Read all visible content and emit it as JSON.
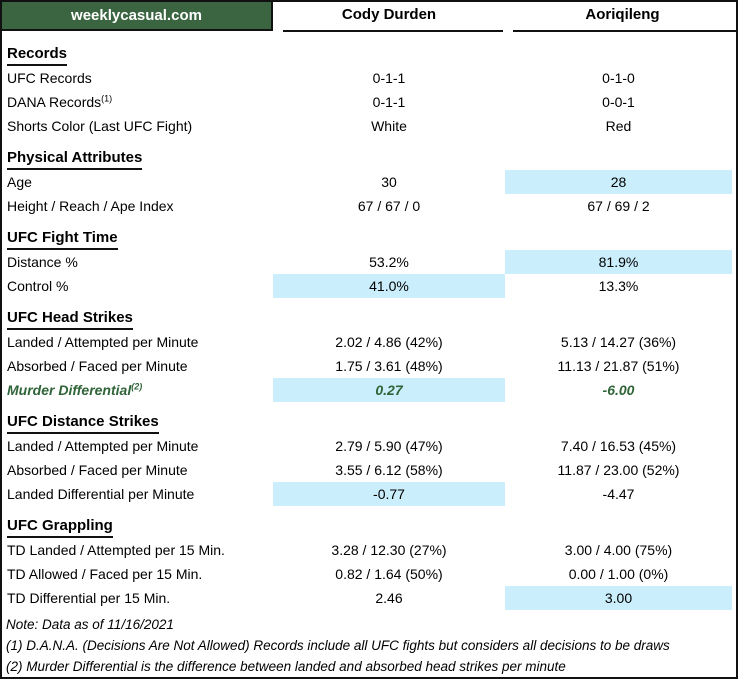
{
  "header": {
    "brand": "weeklycasual.com",
    "fighter1": "Cody Durden",
    "fighter2": "Aoriqileng"
  },
  "colors": {
    "banner_green": "#3A6540",
    "highlight_blue": "#CAEEFB",
    "accent_green_text": "#2F6438",
    "border_black": "#111111"
  },
  "sections": [
    {
      "title": "Records",
      "rows": [
        {
          "label": "UFC Records",
          "v1": "0-1-1",
          "v2": "0-1-0"
        },
        {
          "label": "DANA Records",
          "sup": "(1)",
          "v1": "0-1-1",
          "v2": "0-0-1"
        },
        {
          "label": "Shorts Color (Last UFC Fight)",
          "v1": "White",
          "v2": "Red"
        }
      ]
    },
    {
      "title": "Physical Attributes",
      "rows": [
        {
          "label": "Age",
          "v1": "30",
          "v2": "28",
          "h2": true
        },
        {
          "label": "Height / Reach / Ape Index",
          "v1": "67 / 67 / 0",
          "v2": "67 / 69 / 2"
        }
      ]
    },
    {
      "title": "UFC Fight Time",
      "rows": [
        {
          "label": "Distance %",
          "v1": "53.2%",
          "v2": "81.9%",
          "h2": true
        },
        {
          "label": "Control %",
          "v1": "41.0%",
          "v2": "13.3%",
          "h1": true
        }
      ]
    },
    {
      "title": "UFC Head Strikes",
      "rows": [
        {
          "label": "Landed / Attempted per Minute",
          "v1": "2.02 / 4.86 (42%)",
          "v2": "5.13 / 14.27 (36%)"
        },
        {
          "label": "Absorbed / Faced per Minute",
          "v1": "1.75 / 3.61 (48%)",
          "v2": "11.13 / 21.87 (51%)"
        },
        {
          "label": "Murder Differential",
          "sup": "(2)",
          "v1": "0.27",
          "v2": "-6.00",
          "h1": true,
          "green": true
        }
      ]
    },
    {
      "title": "UFC Distance Strikes",
      "rows": [
        {
          "label": "Landed / Attempted per Minute",
          "v1": "2.79 / 5.90 (47%)",
          "v2": "7.40 / 16.53 (45%)"
        },
        {
          "label": "Absorbed / Faced per Minute",
          "v1": "3.55 / 6.12 (58%)",
          "v2": "11.87 / 23.00 (52%)"
        },
        {
          "label": "Landed Differential per Minute",
          "v1": "-0.77",
          "v2": "-4.47",
          "h1": true
        }
      ]
    },
    {
      "title": "UFC Grappling",
      "rows": [
        {
          "label": "TD Landed / Attempted per 15 Min.",
          "v1": "3.28 / 12.30 (27%)",
          "v2": "3.00 / 4.00 (75%)"
        },
        {
          "label": "TD Allowed / Faced per 15 Min.",
          "v1": "0.82 / 1.64 (50%)",
          "v2": "0.00 / 1.00 (0%)"
        },
        {
          "label": "TD Differential per 15 Min.",
          "v1": "2.46",
          "v2": "3.00",
          "h2": true
        }
      ]
    }
  ],
  "notes": [
    "Note: Data as of 11/16/2021",
    "(1) D.A.N.A. (Decisions Are Not Allowed) Records include all UFC fights but considers all decisions to be draws",
    "(2) Murder Differential is the difference between landed and absorbed head strikes per minute"
  ]
}
